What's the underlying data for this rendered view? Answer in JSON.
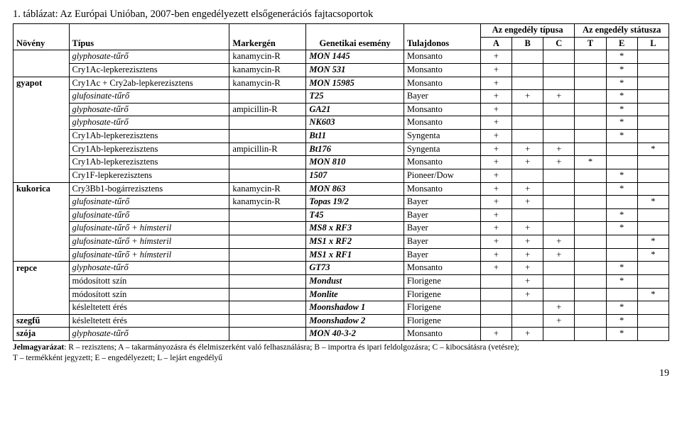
{
  "title": "1. táblázat: Az Európai Unióban, 2007-ben engedélyezett elsőgenerációs fajtacsoportok",
  "headers": {
    "plant": "Növény",
    "type": "Típus",
    "marker": "Markergén",
    "event": "Genetikai esemény",
    "owner": "Tulajdonos",
    "permit_type": "Az engedély típusa",
    "permit_status": "Az engedély státusza",
    "A": "A",
    "B": "B",
    "C": "C",
    "T": "T",
    "E": "E",
    "L": "L"
  },
  "rows": [
    {
      "plant": "",
      "type": "glyphosate-tűrő",
      "tItalic": true,
      "marker": "kanamycin-R",
      "event": "MON 1445",
      "eBold": true,
      "owner": "Monsanto",
      "A": "+",
      "B": "",
      "C": "",
      "T": "",
      "E": "*",
      "L": ""
    },
    {
      "plant": "",
      "type": "Cry1Ac-lepkerezisztens",
      "marker": "kanamycin-R",
      "event": "MON 531",
      "eBold": true,
      "owner": "Monsanto",
      "A": "+",
      "B": "",
      "C": "",
      "T": "",
      "E": "*",
      "L": ""
    },
    {
      "plant": "gyapot",
      "plantBold": true,
      "type": "Cry1Ac + Cry2ab-lepkerezisztens",
      "marker": "kanamycin-R",
      "event": "MON 15985",
      "eBold": true,
      "owner": "Monsanto",
      "A": "+",
      "B": "",
      "C": "",
      "T": "",
      "E": "*",
      "L": ""
    },
    {
      "plant": "",
      "type": "glufosinate-tűrő",
      "tItalic": true,
      "marker": "",
      "event": "T25",
      "eBold": true,
      "owner": "Bayer",
      "A": "+",
      "B": "+",
      "C": "+",
      "T": "",
      "E": "*",
      "L": ""
    },
    {
      "plant": "",
      "type": "glyphosate-tűrő",
      "tItalic": true,
      "marker": "ampicillin-R",
      "event": "GA21",
      "eBold": true,
      "owner": "Monsanto",
      "A": "+",
      "B": "",
      "C": "",
      "T": "",
      "E": "*",
      "L": ""
    },
    {
      "plant": "",
      "type": "glyphosate-tűrő",
      "tItalic": true,
      "marker": "",
      "event": "NK603",
      "eBold": true,
      "owner": "Monsanto",
      "A": "+",
      "B": "",
      "C": "",
      "T": "",
      "E": "*",
      "L": ""
    },
    {
      "plant": "",
      "type": "Cry1Ab-lepkerezisztens",
      "marker": "",
      "event": "Bt11",
      "eBold": true,
      "owner": "Syngenta",
      "A": "+",
      "B": "",
      "C": "",
      "T": "",
      "E": "*",
      "L": ""
    },
    {
      "plant": "",
      "type": "Cry1Ab-lepkerezisztens",
      "marker": "ampicillin-R",
      "event": "Bt176",
      "eBold": true,
      "owner": "Syngenta",
      "A": "+",
      "B": "+",
      "C": "+",
      "T": "",
      "E": "",
      "L": "*"
    },
    {
      "plant": "",
      "type": "Cry1Ab-lepkerezisztens",
      "marker": "",
      "event": "MON 810",
      "eBold": true,
      "owner": "Monsanto",
      "A": "+",
      "B": "+",
      "C": "+",
      "T": "*",
      "E": "",
      "L": ""
    },
    {
      "plant": "",
      "type": "Cry1F-lepkerezisztens",
      "marker": "",
      "event": "1507",
      "eBold": true,
      "owner": "Pioneer/Dow",
      "A": "+",
      "B": "",
      "C": "",
      "T": "",
      "E": "*",
      "L": ""
    },
    {
      "plant": "kukorica",
      "plantBold": true,
      "type": "Cry3Bb1-bogárrezisztens",
      "marker": "kanamycin-R",
      "event": "MON 863",
      "eBold": true,
      "owner": "Monsanto",
      "A": "+",
      "B": "+",
      "C": "",
      "T": "",
      "E": "*",
      "L": ""
    },
    {
      "plant": "",
      "type": "glufosinate-tűrő",
      "tItalic": true,
      "marker": "kanamycin-R",
      "event": "Topas 19/2",
      "eBold": true,
      "owner": "Bayer",
      "A": "+",
      "B": "+",
      "C": "",
      "T": "",
      "E": "",
      "L": "*"
    },
    {
      "plant": "",
      "type": "glufosinate-tűrő",
      "tItalic": true,
      "marker": "",
      "event": "T45",
      "eBold": true,
      "owner": "Bayer",
      "A": "+",
      "B": "",
      "C": "",
      "T": "",
      "E": "*",
      "L": ""
    },
    {
      "plant": "",
      "type": "glufosinate-tűrő + hímsteril",
      "tItalic": true,
      "marker": "",
      "event": "MS8 x RF3",
      "eBold": true,
      "owner": "Bayer",
      "A": "+",
      "B": "+",
      "C": "",
      "T": "",
      "E": "*",
      "L": ""
    },
    {
      "plant": "",
      "type": "glufosinate-tűrő + hímsteril",
      "tItalic": true,
      "marker": "",
      "event": "MS1 x RF2",
      "eBold": true,
      "owner": "Bayer",
      "A": "+",
      "B": "+",
      "C": "+",
      "T": "",
      "E": "",
      "L": "*"
    },
    {
      "plant": "",
      "type": "glufosinate-tűrő + hímsteril",
      "tItalic": true,
      "marker": "",
      "event": "MS1 x RF1",
      "eBold": true,
      "owner": "Bayer",
      "A": "+",
      "B": "+",
      "C": "+",
      "T": "",
      "E": "",
      "L": "*"
    },
    {
      "plant": "repce",
      "plantBold": true,
      "type": "glyphosate-tűrő",
      "tItalic": true,
      "marker": "",
      "event": "GT73",
      "eBold": true,
      "owner": "Monsanto",
      "A": "+",
      "B": "+",
      "C": "",
      "T": "",
      "E": "*",
      "L": ""
    },
    {
      "plant": "",
      "type": "módosított szín",
      "marker": "",
      "event": "Mondust",
      "eBold": true,
      "owner": "Florigene",
      "A": "",
      "B": "+",
      "C": "",
      "T": "",
      "E": "*",
      "L": ""
    },
    {
      "plant": "",
      "type": "módosított szín",
      "marker": "",
      "event": "Monlite",
      "eBold": true,
      "owner": "Florigene",
      "A": "",
      "B": "+",
      "C": "",
      "T": "",
      "E": "",
      "L": "*"
    },
    {
      "plant": "",
      "type": "késleltetett érés",
      "marker": "",
      "event": "Moonshadow 1",
      "eBold": true,
      "owner": "Florigene",
      "A": "",
      "B": "",
      "C": "+",
      "T": "",
      "E": "*",
      "L": ""
    },
    {
      "plant": "szegfű",
      "plantBold": true,
      "type": "késleltetett érés",
      "marker": "",
      "event": "Moonshadow 2",
      "eBold": true,
      "owner": "Florigene",
      "A": "",
      "B": "",
      "C": "+",
      "T": "",
      "E": "*",
      "L": ""
    },
    {
      "plant": "szója",
      "plantBold": true,
      "type": "glyphosate-tűrő",
      "tItalic": true,
      "marker": "",
      "event": "MON 40-3-2",
      "eBold": true,
      "owner": "Monsanto",
      "A": "+",
      "B": "+",
      "C": "",
      "T": "",
      "E": "*",
      "L": ""
    }
  ],
  "legend": {
    "line1_pre": "Jelmagyarázat",
    "line1_rest": ": R – rezisztens; A – takarmányozásra és élelmiszerként való felhasználásra; B – importra és ipari feldolgozásra; C – kibocsátásra (vetésre);",
    "line2": "T – termékként jegyzett; E – engedélyezett; L – lejárt engedélyű"
  },
  "pagenum": "19",
  "columns": {
    "widths_pct": [
      8,
      23,
      11,
      14,
      11,
      4.5,
      4.5,
      4.5,
      4.5,
      4.5,
      4.5
    ]
  }
}
